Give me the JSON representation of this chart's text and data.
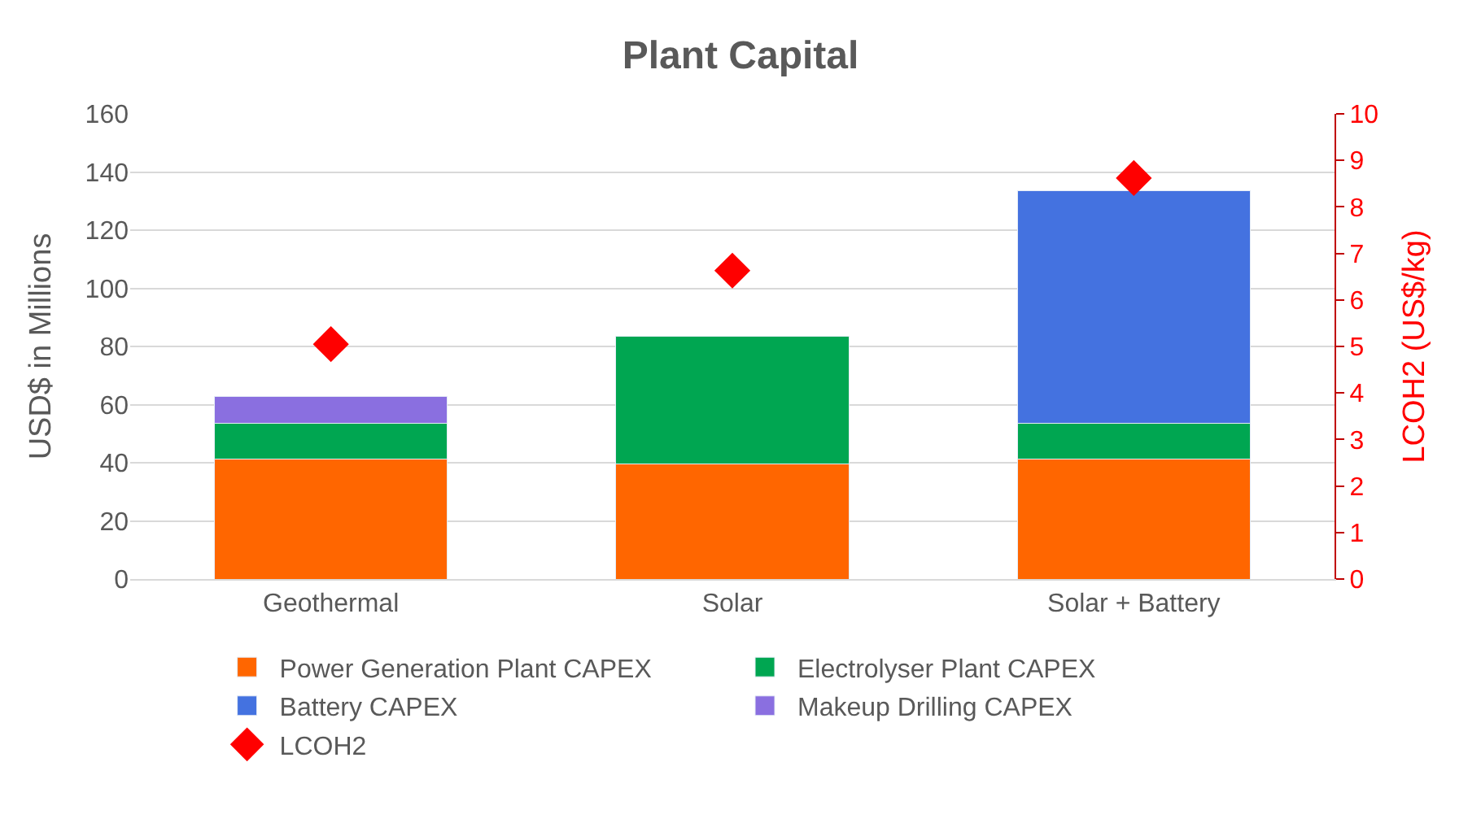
{
  "chart_data": {
    "type": "bar",
    "title": "Plant Capital",
    "ylabel": "USD$ in Millions",
    "y2label": "LCOH2 (US$/kg)",
    "categories": [
      "Geothermal",
      "Solar",
      "Solar + Battery"
    ],
    "stacked": true,
    "series": [
      {
        "name": "Power Generation Plant CAPEX",
        "color": "#ff6600",
        "values": [
          41.4,
          39.7,
          41.4
        ]
      },
      {
        "name": "Electrolyser Plant CAPEX",
        "color": "#00a651",
        "values": [
          12.1,
          43.8,
          12.1
        ]
      },
      {
        "name": "Battery CAPEX",
        "color": "#4472e0",
        "values": [
          null,
          null,
          80.2
        ]
      },
      {
        "name": "Makeup Drilling CAPEX",
        "color": "#8a6fe0",
        "values": [
          9.3,
          null,
          null
        ]
      },
      {
        "name": "LCOH2",
        "type": "scatter",
        "axis": "y2",
        "marker": "diamond",
        "color": "#ff0000",
        "values": [
          5.05,
          6.63,
          8.62
        ]
      }
    ],
    "ylim": [
      0,
      160
    ],
    "yticks": [
      0,
      20,
      40,
      60,
      80,
      100,
      120,
      140,
      160
    ],
    "y2lim": [
      0,
      10
    ],
    "y2ticks": [
      0,
      1,
      2,
      3,
      4,
      5,
      6,
      7,
      8,
      9,
      10
    ],
    "grid": "y",
    "legend": "bottom"
  }
}
